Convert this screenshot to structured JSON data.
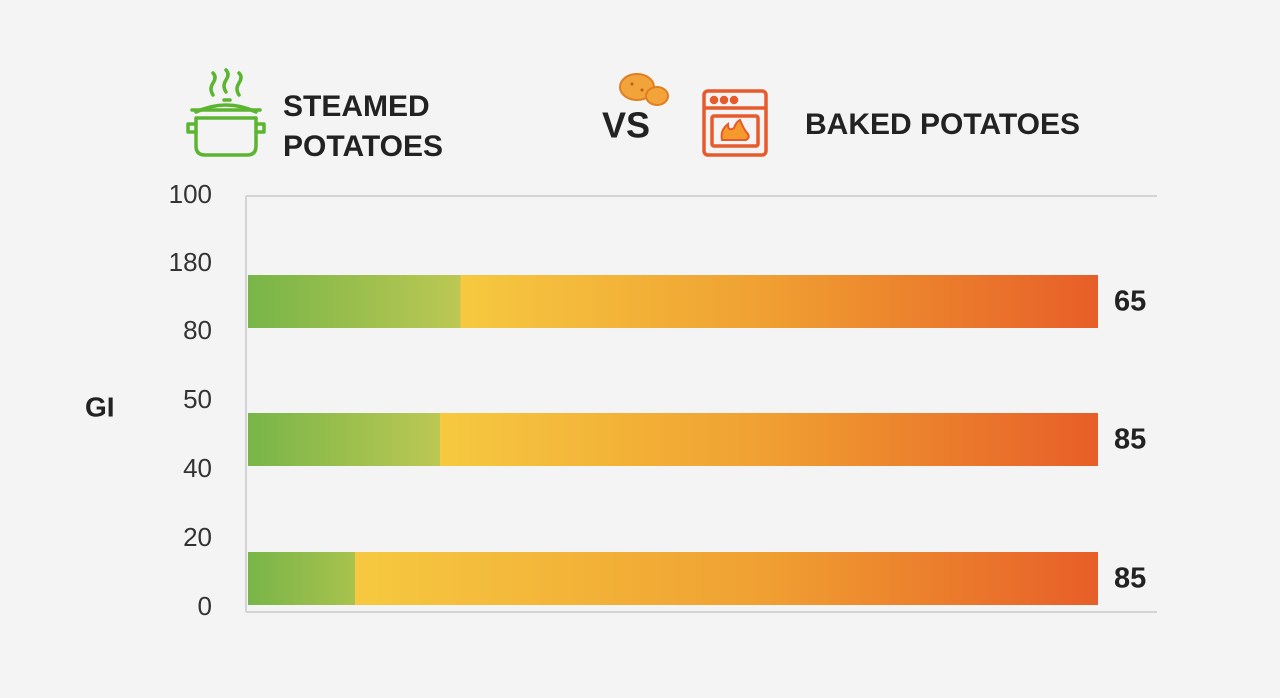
{
  "header": {
    "left_title_line1": "STEAMED",
    "left_title_line2": "POTATOES",
    "vs": "VS",
    "right_title": "BAKED POTATOES"
  },
  "axis": {
    "title": "GI",
    "labels": [
      "100",
      "180",
      "80",
      "50",
      "40",
      "20",
      "0"
    ]
  },
  "bars": [
    {
      "value": 65
    },
    {
      "value": 85
    },
    {
      "value": 85
    }
  ]
}
